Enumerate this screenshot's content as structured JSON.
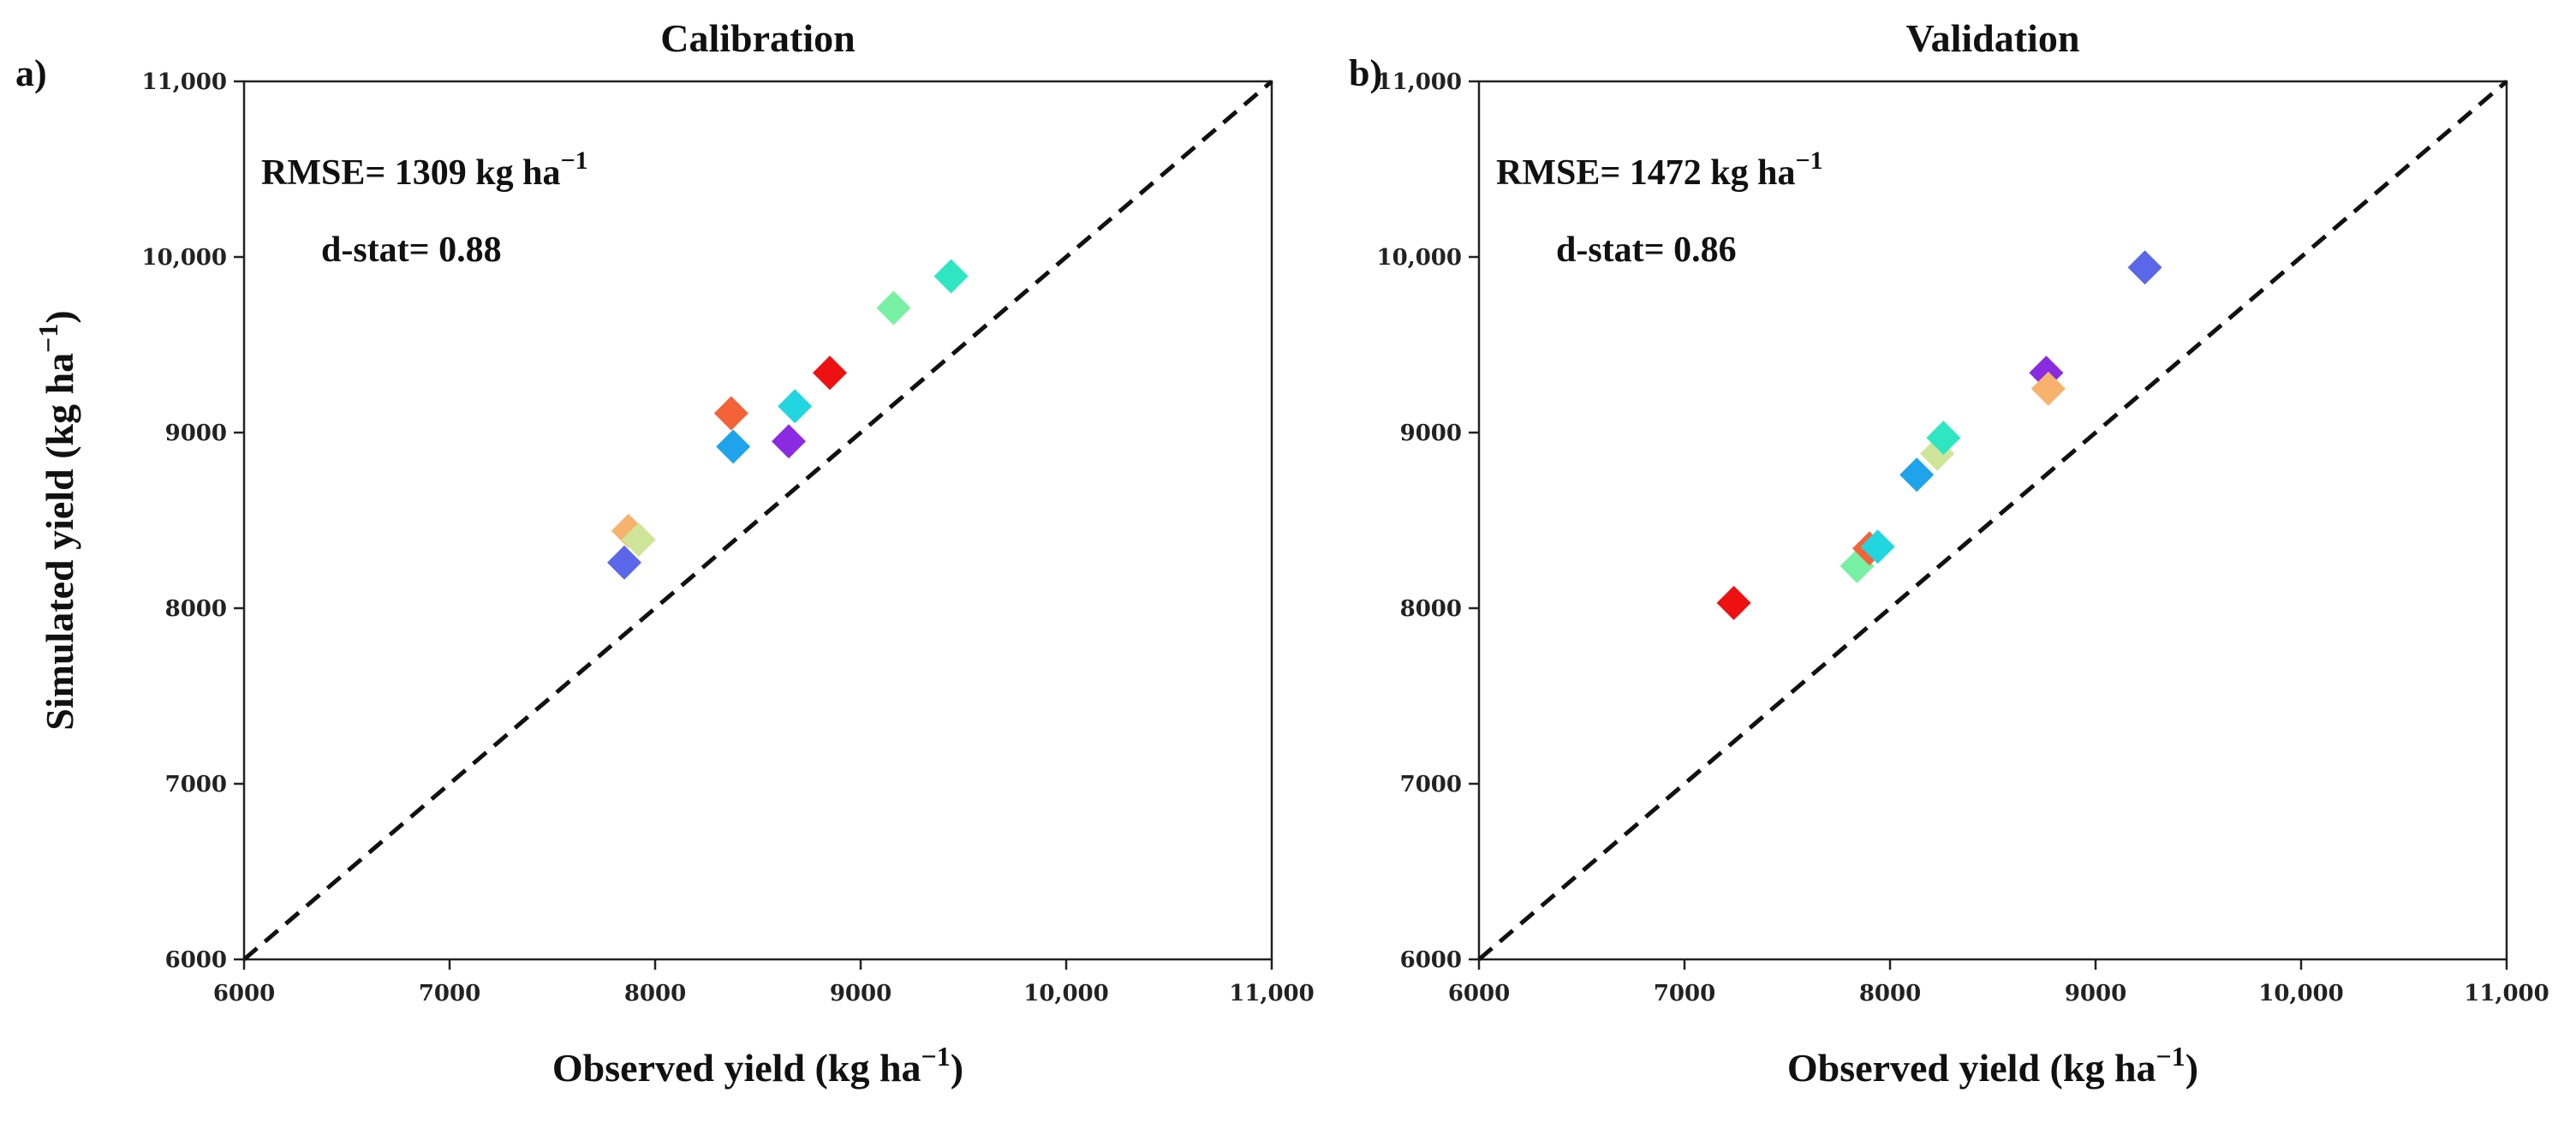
{
  "chart_data": [
    {
      "panel_label": "a)",
      "type": "scatter",
      "title": "Calibration",
      "xlabel": "Observed yield (kg ha",
      "ylabel": "Simulated yield (kg ha",
      "unit_exponent": "−1",
      "xlim": [
        6000,
        11000
      ],
      "ylim": [
        6000,
        11000
      ],
      "xticks": [
        "6000",
        "7000",
        "8000",
        "9000",
        "10,000",
        "11,000"
      ],
      "yticks": [
        "6000",
        "7000",
        "8000",
        "9000",
        "10,000",
        "11,000"
      ],
      "reference_line": "1:1",
      "rmse_label": "RMSE= 1309 kg ha",
      "dstat_label": "d-stat= 0.88",
      "points": [
        {
          "x": 7850,
          "y": 8260,
          "color": "#5a67e8"
        },
        {
          "x": 7870,
          "y": 8440,
          "color": "#f7b26e"
        },
        {
          "x": 7920,
          "y": 8390,
          "color": "#cfe59a"
        },
        {
          "x": 8370,
          "y": 9110,
          "color": "#f46238"
        },
        {
          "x": 8380,
          "y": 8920,
          "color": "#1fa3ea"
        },
        {
          "x": 8650,
          "y": 8950,
          "color": "#8a2be2"
        },
        {
          "x": 8680,
          "y": 9150,
          "color": "#22d6e0"
        },
        {
          "x": 8850,
          "y": 9340,
          "color": "#ee1111"
        },
        {
          "x": 9160,
          "y": 9710,
          "color": "#78f0a4"
        },
        {
          "x": 9440,
          "y": 9890,
          "color": "#2ee6c2"
        }
      ]
    },
    {
      "panel_label": "b)",
      "type": "scatter",
      "title": "Validation",
      "xlabel": "Observed yield (kg ha",
      "ylabel": "",
      "unit_exponent": "−1",
      "xlim": [
        6000,
        11000
      ],
      "ylim": [
        6000,
        11000
      ],
      "xticks": [
        "6000",
        "7000",
        "8000",
        "9000",
        "10,000",
        "11,000"
      ],
      "yticks": [
        "6000",
        "7000",
        "8000",
        "9000",
        "10,000",
        "11,000"
      ],
      "reference_line": "1:1",
      "rmse_label": "RMSE= 1472 kg ha",
      "dstat_label": "d-stat= 0.86",
      "points": [
        {
          "x": 7240,
          "y": 8030,
          "color": "#ee1111"
        },
        {
          "x": 7840,
          "y": 8240,
          "color": "#78f0a4"
        },
        {
          "x": 7900,
          "y": 8340,
          "color": "#f46238"
        },
        {
          "x": 7940,
          "y": 8350,
          "color": "#22d6e0"
        },
        {
          "x": 8130,
          "y": 8760,
          "color": "#1fa3ea"
        },
        {
          "x": 8230,
          "y": 8880,
          "color": "#cfe59a"
        },
        {
          "x": 8260,
          "y": 8970,
          "color": "#2ee6c2"
        },
        {
          "x": 8760,
          "y": 9340,
          "color": "#8a2be2"
        },
        {
          "x": 8770,
          "y": 9250,
          "color": "#f7b26e"
        },
        {
          "x": 9240,
          "y": 9940,
          "color": "#5a67e8"
        }
      ]
    }
  ]
}
